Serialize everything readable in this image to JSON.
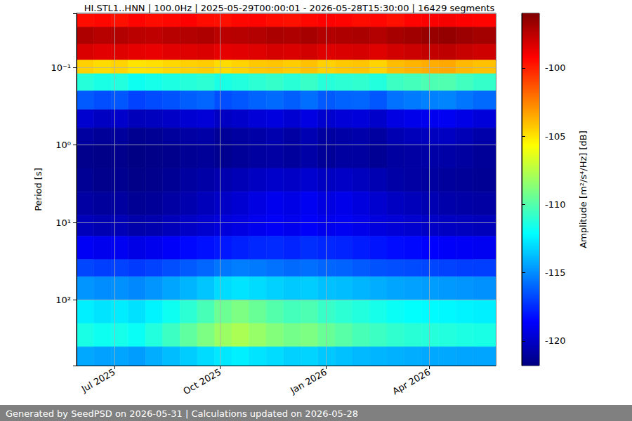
{
  "chart_data": {
    "type": "heatmap",
    "title": "HI.STL1..HNN | 100.0Hz | 2025-05-29T00:00:01 - 2026-05-28T15:30:00 | 16429 segments",
    "footer": "Generated by SeedPSD on 2026-05-31 | Calculations updated on 2026-05-28",
    "y_label": "Period [s]",
    "x": [
      "2025-05-29T00:00:01",
      "2025-06-13",
      "2025-06-28",
      "2025-07-13",
      "2025-07-28",
      "2025-08-12",
      "2025-08-27",
      "2025-09-11",
      "2025-09-26",
      "2025-10-11",
      "2025-10-26",
      "2025-11-10",
      "2025-11-25",
      "2025-12-10",
      "2025-12-25",
      "2026-01-09",
      "2026-01-24",
      "2026-02-08",
      "2026-02-23",
      "2026-03-10",
      "2026-03-25",
      "2026-04-09",
      "2026-04-24",
      "2026-05-09",
      "2026-05-28T15:30:00"
    ],
    "y": [
      0.02,
      0.03,
      0.05,
      0.08,
      0.12,
      0.2,
      0.35,
      0.6,
      1,
      2,
      4,
      8,
      15,
      30,
      50,
      100,
      200,
      400,
      700
    ],
    "cells": [
      [
        -99.5,
        -99.4,
        -99.6,
        -99.3,
        -99.5,
        -99.4,
        -99.2,
        -99.5,
        -99.6,
        -99.4,
        -99.3,
        -99.5,
        -99.6,
        -99.4,
        -99.2,
        -99.3,
        -99.5,
        -99.4,
        -99.6,
        -99.3,
        -99.1,
        -99.0,
        -99.2,
        -99.3
      ],
      [
        -97.2,
        -97.4,
        -97.3,
        -97.5,
        -97.6,
        -97.4,
        -97.3,
        -97.2,
        -97.5,
        -97.4,
        -97.3,
        -97.1,
        -97.2,
        -97.0,
        -97.3,
        -97.2,
        -97.1,
        -97.3,
        -97.0,
        -96.8,
        -96.6,
        -96.5,
        -96.7,
        -96.9
      ],
      [
        -98.3,
        -98.5,
        -98.4,
        -98.6,
        -98.7,
        -98.5,
        -98.4,
        -98.3,
        -98.6,
        -98.5,
        -98.4,
        -98.2,
        -98.3,
        -98.1,
        -98.4,
        -98.3,
        -98.2,
        -98.4,
        -98.1,
        -97.9,
        -97.7,
        -97.6,
        -97.8,
        -98.0
      ],
      [
        -104.5,
        -104.8,
        -104.6,
        -105.0,
        -104.9,
        -104.7,
        -104.5,
        -104.4,
        -104.8,
        -104.6,
        -104.3,
        -104.2,
        -104.4,
        -104.1,
        -104.5,
        -104.3,
        -104.2,
        -104.6,
        -104.0,
        -103.8,
        -103.6,
        -103.5,
        -103.9,
        -104.1
      ],
      [
        -111.2,
        -111.5,
        -111.3,
        -111.8,
        -111.6,
        -111.4,
        -111.2,
        -111.0,
        -111.5,
        -111.3,
        -111.0,
        -110.8,
        -111.1,
        -110.7,
        -111.2,
        -111.0,
        -110.9,
        -111.3,
        -110.6,
        -110.4,
        -110.2,
        -110.1,
        -110.5,
        -110.8
      ],
      [
        -116.3,
        -116.6,
        -116.4,
        -116.9,
        -116.7,
        -116.5,
        -116.2,
        -116.0,
        -116.6,
        -116.4,
        -116.1,
        -115.9,
        -116.2,
        -115.8,
        -116.3,
        -116.1,
        -116.0,
        -116.4,
        -115.7,
        -115.5,
        -115.3,
        -115.2,
        -115.6,
        -115.9
      ],
      [
        -119.8,
        -120.1,
        -119.9,
        -120.3,
        -120.2,
        -120.0,
        -119.7,
        -119.6,
        -120.1,
        -119.9,
        -119.6,
        -119.4,
        -119.7,
        -119.3,
        -119.8,
        -119.6,
        -119.5,
        -119.9,
        -119.3,
        -119.1,
        -119.0,
        -118.9,
        -119.2,
        -119.5
      ],
      [
        -121.0,
        -121.2,
        -121.1,
        -121.4,
        -121.3,
        -121.1,
        -120.9,
        -120.8,
        -121.2,
        -121.0,
        -120.8,
        -120.6,
        -120.9,
        -120.5,
        -121.0,
        -120.8,
        -120.7,
        -121.0,
        -120.5,
        -120.3,
        -120.2,
        -120.1,
        -120.4,
        -120.7
      ],
      [
        -121.5,
        -121.6,
        -121.5,
        -121.7,
        -121.6,
        -121.5,
        -121.3,
        -121.2,
        -121.4,
        -121.2,
        -121.0,
        -120.9,
        -121.1,
        -120.8,
        -121.2,
        -121.0,
        -121.0,
        -121.3,
        -121.0,
        -120.9,
        -120.8,
        -120.8,
        -121.0,
        -121.2
      ],
      [
        -121.3,
        -121.5,
        -121.4,
        -121.6,
        -121.5,
        -121.3,
        -121.0,
        -120.8,
        -120.6,
        -120.4,
        -120.1,
        -119.9,
        -120.0,
        -119.8,
        -120.1,
        -120.0,
        -120.2,
        -120.5,
        -120.8,
        -120.9,
        -121.0,
        -121.1,
        -121.2,
        -121.3
      ],
      [
        -120.9,
        -121.1,
        -121.0,
        -121.3,
        -121.2,
        -120.9,
        -120.6,
        -120.3,
        -120.0,
        -119.7,
        -119.3,
        -119.0,
        -119.2,
        -118.9,
        -119.3,
        -119.1,
        -119.4,
        -119.8,
        -120.1,
        -120.3,
        -120.5,
        -120.7,
        -120.8,
        -120.9
      ],
      [
        -120.3,
        -120.5,
        -120.4,
        -120.7,
        -120.6,
        -120.3,
        -120.0,
        -119.8,
        -119.5,
        -119.3,
        -119.0,
        -118.8,
        -119.0,
        -118.7,
        -119.0,
        -118.9,
        -119.1,
        -119.4,
        -119.6,
        -119.8,
        -120.0,
        -120.1,
        -120.2,
        -120.3
      ],
      [
        -118.8,
        -119.0,
        -118.9,
        -119.2,
        -119.0,
        -118.7,
        -118.4,
        -118.2,
        -118.0,
        -117.8,
        -117.6,
        -117.5,
        -117.7,
        -117.4,
        -117.6,
        -117.7,
        -117.9,
        -118.1,
        -118.3,
        -118.4,
        -118.6,
        -118.7,
        -118.8,
        -118.9
      ],
      [
        -116.8,
        -117.0,
        -116.9,
        -117.1,
        -116.9,
        -116.6,
        -116.3,
        -116.0,
        -115.6,
        -115.4,
        -115.5,
        -115.7,
        -115.9,
        -115.8,
        -116.0,
        -116.1,
        -116.3,
        -116.5,
        -116.6,
        -116.7,
        -116.8,
        -116.9,
        -117.0,
        -117.0
      ],
      [
        -114.8,
        -115.0,
        -114.9,
        -115.1,
        -114.8,
        -114.4,
        -114.0,
        -113.6,
        -113.0,
        -112.8,
        -113.0,
        -113.3,
        -113.5,
        -113.4,
        -113.7,
        -113.8,
        -114.0,
        -114.2,
        -114.4,
        -114.5,
        -114.6,
        -114.7,
        -114.8,
        -114.9
      ],
      [
        -112.5,
        -112.8,
        -112.6,
        -112.9,
        -112.4,
        -111.8,
        -111.0,
        -110.3,
        -109.4,
        -109.0,
        -109.5,
        -110.0,
        -110.4,
        -110.2,
        -110.7,
        -111.0,
        -111.3,
        -111.6,
        -111.9,
        -112.1,
        -112.2,
        -112.3,
        -112.4,
        -112.5
      ],
      [
        -111.5,
        -111.8,
        -111.6,
        -111.9,
        -111.3,
        -110.6,
        -109.7,
        -109.0,
        -108.2,
        -107.8,
        -108.3,
        -108.8,
        -109.2,
        -109.0,
        -109.5,
        -109.9,
        -110.3,
        -110.6,
        -110.9,
        -111.1,
        -111.2,
        -111.3,
        -111.4,
        -111.5
      ],
      [
        -114.3,
        -114.5,
        -114.4,
        -114.6,
        -114.2,
        -113.8,
        -113.4,
        -113.0,
        -112.7,
        -112.5,
        -112.8,
        -113.0,
        -113.3,
        -113.2,
        -113.5,
        -113.7,
        -113.9,
        -114.0,
        -114.1,
        -114.2,
        -114.3,
        -114.3,
        -114.4,
        -114.4
      ]
    ],
    "xlim": [
      "2025-05-29T00:00:01",
      "2026-05-28T15:30:00"
    ],
    "xticks": [
      {
        "value": "2025-07-01",
        "label": "Jul 2025"
      },
      {
        "value": "2025-10-01",
        "label": "Oct 2025"
      },
      {
        "value": "2026-01-01",
        "label": "Jan 2026"
      },
      {
        "value": "2026-04-01",
        "label": "Apr 2026"
      }
    ],
    "ylim": [
      0.02,
      700
    ],
    "yticks": [
      {
        "value": 0.1,
        "label": "10⁻¹"
      },
      {
        "value": 1,
        "label": "10⁰"
      },
      {
        "value": 10,
        "label": "10¹"
      },
      {
        "value": 100,
        "label": "10²"
      }
    ],
    "log": "y",
    "grid": true,
    "colorbar": {
      "label": "Amplitude [m²/s⁴/Hz] [dB]",
      "range": [
        -121.8,
        -96
      ],
      "ticks": [
        -120,
        -115,
        -110,
        -105,
        -100
      ]
    }
  }
}
